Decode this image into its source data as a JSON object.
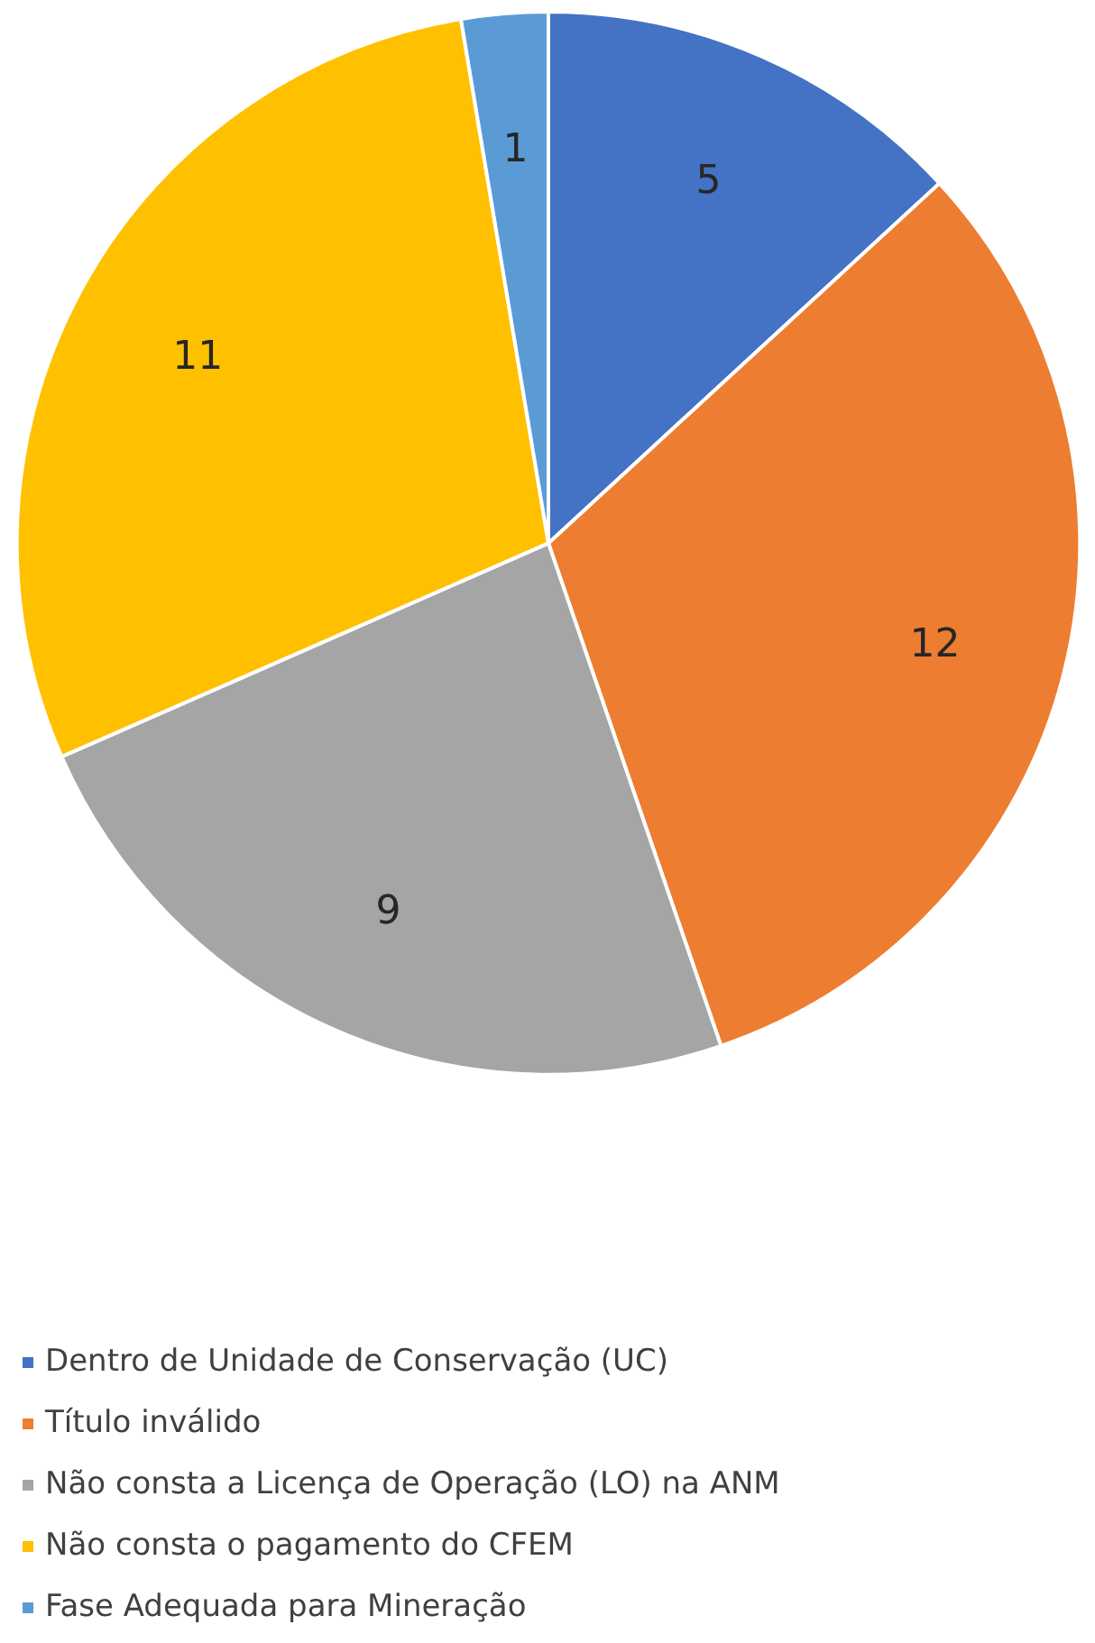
{
  "chart_data": {
    "type": "pie",
    "categories": [
      "Dentro de Unidade de Conservação (UC)",
      "Título inválido",
      "Não consta a Licença de Operação (LO) na ANM",
      "Não consta o pagamento do CFEM",
      "Fase Adequada para Mineração"
    ],
    "values": [
      5,
      12,
      9,
      11,
      1
    ],
    "colors": [
      "#4472c4",
      "#ed7d31",
      "#a5a5a5",
      "#ffc000",
      "#5b9bd5"
    ],
    "data_labels": true,
    "legend": "bottom"
  }
}
